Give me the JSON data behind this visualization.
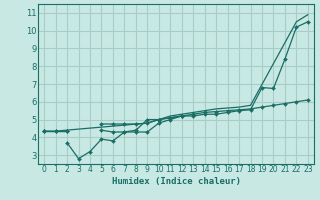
{
  "xlabel": "Humidex (Indice chaleur)",
  "bg_color": "#c8e8e4",
  "grid_color": "#a8ccc8",
  "line_color": "#1a6e65",
  "axis_color": "#1a6e65",
  "xlim": [
    -0.5,
    23.5
  ],
  "ylim": [
    2.5,
    11.5
  ],
  "xticks": [
    0,
    1,
    2,
    3,
    4,
    5,
    6,
    7,
    8,
    9,
    10,
    11,
    12,
    13,
    14,
    15,
    16,
    17,
    18,
    19,
    20,
    21,
    22,
    23
  ],
  "yticks": [
    3,
    4,
    5,
    6,
    7,
    8,
    9,
    10,
    11
  ],
  "series": [
    {
      "x": [
        0,
        1,
        2,
        3,
        4,
        5,
        6,
        7,
        8,
        9,
        10,
        11,
        12,
        13,
        14,
        15,
        16,
        17,
        18,
        19,
        20,
        21,
        22,
        23
      ],
      "y": [
        4.35,
        4.35,
        4.35,
        null,
        null,
        4.75,
        4.75,
        4.75,
        4.75,
        4.8,
        5.0,
        5.1,
        5.2,
        5.3,
        5.4,
        5.45,
        5.5,
        5.55,
        5.6,
        5.7,
        5.8,
        5.9,
        6.0,
        6.1
      ],
      "marker": true
    },
    {
      "x": [
        0,
        1,
        2,
        3,
        4,
        5,
        6,
        7,
        8,
        9,
        10,
        11,
        12,
        13,
        14,
        15,
        16,
        17,
        18,
        19,
        20,
        21,
        22,
        23
      ],
      "y": [
        4.35,
        4.35,
        4.35,
        null,
        null,
        4.4,
        4.3,
        4.3,
        4.3,
        4.3,
        4.8,
        5.0,
        5.2,
        5.2,
        5.3,
        5.3,
        5.4,
        5.5,
        5.55,
        6.8,
        6.75,
        8.4,
        10.2,
        10.5
      ],
      "marker": true
    },
    {
      "x": [
        0,
        1,
        2,
        3,
        4,
        5,
        6,
        7,
        8,
        9,
        10,
        11,
        12
      ],
      "y": [
        4.35,
        null,
        3.7,
        2.8,
        3.2,
        3.9,
        3.8,
        4.3,
        4.4,
        5.0,
        5.0,
        5.1,
        5.2
      ],
      "marker": true
    },
    {
      "x": [
        0,
        1,
        9,
        10,
        11,
        12,
        13,
        14,
        15,
        16,
        17,
        18,
        22,
        23
      ],
      "y": [
        4.35,
        4.35,
        4.8,
        5.0,
        5.2,
        5.3,
        5.4,
        5.5,
        5.6,
        5.65,
        5.7,
        5.8,
        10.5,
        10.9
      ],
      "marker": false
    }
  ]
}
